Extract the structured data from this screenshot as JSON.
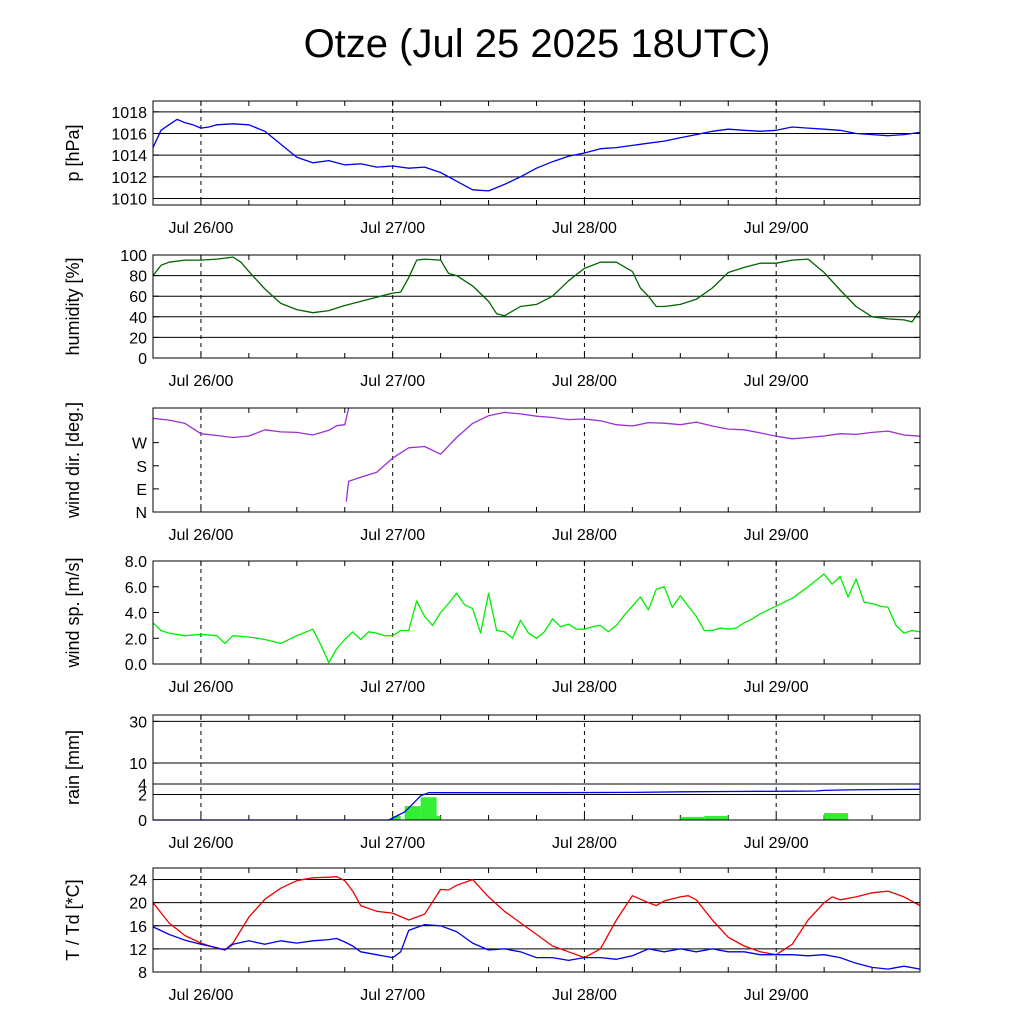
{
  "title": "Otze (Jul 25 2025 18UTC)",
  "colors": {
    "pressure": "#0000ee",
    "humidity": "#006400",
    "wind_dir": "#9b30d9",
    "wind_speed": "#00ee00",
    "rain_total": "#0000ee",
    "rain_bar": "#33ee33",
    "temperature": "#ee0000",
    "dewpoint": "#0000ee"
  },
  "chart_data": [
    {
      "type": "line",
      "id": "pressure",
      "ylabel": "p [hPa]",
      "ylim": [
        1009.4,
        1019.0
      ],
      "yticks": [
        1010,
        1012,
        1014,
        1016,
        1018
      ],
      "grid": true,
      "xlim": [
        0,
        96
      ],
      "xtick_positions": [
        6,
        30,
        54,
        78
      ],
      "xtick_labels": [
        "Jul 26/00",
        "Jul 27/00",
        "Jul 28/00",
        "Jul 29/00"
      ],
      "series": [
        {
          "color": "pressure",
          "x": [
            0,
            1,
            2,
            3,
            4,
            5,
            6,
            7,
            8,
            10,
            12,
            14,
            16,
            18,
            20,
            22,
            24,
            26,
            28,
            30,
            32,
            34,
            36,
            38,
            40,
            42,
            44,
            46,
            48,
            50,
            52,
            54,
            56,
            58,
            60,
            62,
            64,
            66,
            68,
            70,
            72,
            74,
            76,
            78,
            80,
            82,
            84,
            86,
            88,
            90,
            92,
            94,
            96
          ],
          "y": [
            1014.7,
            1016.3,
            1016.8,
            1017.3,
            1017.0,
            1016.8,
            1016.5,
            1016.6,
            1016.8,
            1016.9,
            1016.8,
            1016.2,
            1015.0,
            1013.8,
            1013.3,
            1013.5,
            1013.1,
            1013.2,
            1012.9,
            1013.0,
            1012.8,
            1012.9,
            1012.4,
            1011.6,
            1010.8,
            1010.7,
            1011.3,
            1012.0,
            1012.8,
            1013.4,
            1013.9,
            1014.2,
            1014.6,
            1014.7,
            1014.9,
            1015.1,
            1015.3,
            1015.6,
            1015.9,
            1016.2,
            1016.4,
            1016.3,
            1016.2,
            1016.3,
            1016.6,
            1016.5,
            1016.4,
            1016.3,
            1016.0,
            1015.9,
            1015.8,
            1015.9,
            1016.1
          ]
        }
      ]
    },
    {
      "type": "line",
      "id": "humidity",
      "ylabel": "humidity [%]",
      "ylim": [
        0,
        100
      ],
      "yticks": [
        0,
        20,
        40,
        60,
        80,
        100
      ],
      "grid": true,
      "xlim": [
        0,
        96
      ],
      "xtick_positions": [
        6,
        30,
        54,
        78
      ],
      "xtick_labels": [
        "Jul 26/00",
        "Jul 27/00",
        "Jul 28/00",
        "Jul 29/00"
      ],
      "series": [
        {
          "color": "humidity",
          "x": [
            0,
            1,
            2,
            4,
            6,
            8,
            10,
            11,
            12,
            14,
            16,
            18,
            20,
            22,
            24,
            26,
            28,
            30,
            31,
            32,
            33,
            34,
            36,
            37,
            38,
            40,
            42,
            43,
            44,
            46,
            48,
            50,
            52,
            54,
            56,
            58,
            60,
            61,
            62,
            63,
            64,
            66,
            68,
            70,
            72,
            74,
            76,
            78,
            80,
            82,
            84,
            86,
            88,
            90,
            92,
            94,
            95,
            96
          ],
          "y": [
            80,
            90,
            93,
            95,
            95,
            96,
            98,
            93,
            84,
            67,
            53,
            47,
            44,
            46,
            51,
            55,
            59,
            63,
            64,
            78,
            95,
            96,
            95,
            82,
            80,
            70,
            55,
            43,
            41,
            50,
            52,
            60,
            75,
            87,
            93,
            93,
            84,
            68,
            60,
            50,
            50,
            52,
            57,
            68,
            83,
            88,
            92,
            92,
            95,
            96,
            83,
            66,
            50,
            40,
            38,
            37,
            35,
            46
          ]
        }
      ]
    },
    {
      "type": "line",
      "id": "wind_dir",
      "ylabel": "wind dir. [deg.]",
      "ylim": [
        0,
        405
      ],
      "ytick_values": [
        0,
        90,
        180,
        270
      ],
      "ytick_labels": [
        "N",
        "E",
        "S",
        "W"
      ],
      "grid": false,
      "xlim": [
        0,
        96
      ],
      "xtick_positions": [
        6,
        30,
        54,
        78
      ],
      "xtick_labels": [
        "Jul 26/00",
        "Jul 27/00",
        "Jul 28/00",
        "Jul 29/00"
      ],
      "series": [
        {
          "color": "wind_dir",
          "x": [
            0,
            2,
            4,
            6,
            8,
            10,
            12,
            14,
            16,
            18,
            20,
            22,
            23,
            24,
            24.5
          ],
          "y": [
            365,
            358,
            345,
            305,
            298,
            290,
            296,
            320,
            312,
            310,
            300,
            318,
            336,
            340,
            405
          ]
        },
        {
          "color": "wind_dir",
          "x": [
            24.2,
            24.3,
            24.5,
            26,
            28,
            30,
            32,
            34,
            36,
            38,
            40,
            42,
            44,
            46,
            48,
            50,
            52,
            54,
            56,
            58,
            60,
            62,
            64,
            66,
            68,
            70,
            72,
            74,
            76,
            78,
            80,
            82,
            84,
            86,
            88,
            90,
            92,
            94,
            96
          ],
          "y": [
            40,
            70,
            120,
            135,
            155,
            210,
            250,
            255,
            225,
            290,
            345,
            375,
            388,
            382,
            373,
            368,
            360,
            362,
            355,
            340,
            335,
            348,
            346,
            340,
            350,
            335,
            323,
            320,
            308,
            295,
            285,
            290,
            296,
            305,
            302,
            310,
            315,
            300,
            295
          ]
        }
      ]
    },
    {
      "type": "line",
      "id": "wind_speed",
      "ylabel": "wind sp. [m/s]",
      "ylim": [
        0,
        8
      ],
      "yticks": [
        0,
        2,
        4,
        6,
        8
      ],
      "ytick_labels": [
        "0.0",
        "2.0",
        "4.0",
        "6.0",
        "8.0"
      ],
      "grid": false,
      "xlim": [
        0,
        96
      ],
      "xtick_positions": [
        6,
        30,
        54,
        78
      ],
      "xtick_labels": [
        "Jul 26/00",
        "Jul 27/00",
        "Jul 28/00",
        "Jul 29/00"
      ],
      "series": [
        {
          "color": "wind_speed",
          "x": [
            0,
            1,
            2,
            4,
            6,
            8,
            9,
            10,
            12,
            14,
            16,
            18,
            20,
            21,
            22,
            23,
            24,
            25,
            26,
            27,
            28,
            29,
            30,
            31,
            32,
            33,
            34,
            35,
            36,
            37,
            38,
            39,
            40,
            41,
            42,
            43,
            44,
            45,
            46,
            47,
            48,
            49,
            50,
            51,
            52,
            53,
            54,
            55,
            56,
            57,
            58,
            59,
            60,
            61,
            62,
            63,
            64,
            65,
            66,
            67,
            68,
            69,
            70,
            71,
            72,
            73,
            74,
            75,
            76,
            78,
            80,
            82,
            84,
            85,
            86,
            87,
            88,
            89,
            90,
            91,
            92,
            93,
            94,
            95,
            96
          ],
          "y": [
            3.2,
            2.6,
            2.4,
            2.2,
            2.3,
            2.2,
            1.6,
            2.2,
            2.1,
            1.9,
            1.6,
            2.2,
            2.7,
            1.5,
            0.1,
            1.2,
            1.9,
            2.5,
            1.9,
            2.5,
            2.4,
            2.2,
            2.2,
            2.6,
            2.6,
            4.9,
            3.7,
            3.0,
            4.0,
            4.7,
            5.5,
            4.6,
            4.3,
            2.4,
            5.5,
            2.6,
            2.5,
            2.0,
            3.4,
            2.4,
            2.0,
            2.5,
            3.5,
            2.9,
            3.1,
            2.7,
            2.7,
            2.9,
            3.0,
            2.5,
            3.0,
            3.8,
            4.5,
            5.2,
            4.2,
            5.8,
            6.0,
            4.4,
            5.3,
            4.5,
            3.7,
            2.6,
            2.6,
            2.8,
            2.7,
            2.8,
            3.2,
            3.5,
            3.9,
            4.5,
            5.1,
            6.0,
            7.0,
            6.2,
            6.8,
            5.2,
            6.6,
            4.8,
            4.7,
            4.5,
            4.4,
            3.0,
            2.4,
            2.6,
            2.5
          ]
        }
      ]
    },
    {
      "type": "bar+line",
      "id": "rain",
      "ylabel": "rain [mm]",
      "scale": "root",
      "ylim": [
        0,
        34
      ],
      "yticks": [
        0,
        2,
        4,
        10,
        30
      ],
      "grid": true,
      "xlim": [
        0,
        96
      ],
      "xtick_positions": [
        6,
        30,
        54,
        78
      ],
      "xtick_labels": [
        "Jul 26/00",
        "Jul 27/00",
        "Jul 28/00",
        "Jul 29/00"
      ],
      "bars": {
        "color": "rain_bar",
        "x": [
          30.5,
          32.5,
          34.5,
          35.5,
          67.5,
          70.5,
          85.5
        ],
        "width": [
          1,
          2,
          2,
          1,
          3,
          3,
          3
        ],
        "values": [
          0.05,
          0.6,
          1.6,
          0.05,
          0.03,
          0.05,
          0.15
        ]
      },
      "series": [
        {
          "color": "rain_total",
          "x": [
            0,
            29.5,
            30.5,
            31.5,
            32.5,
            33.5,
            34.5,
            40,
            50,
            60,
            66,
            72,
            80,
            83,
            84,
            87,
            90,
            96
          ],
          "y": [
            0,
            0,
            0.05,
            0.2,
            0.8,
            1.8,
            2.3,
            2.3,
            2.3,
            2.35,
            2.45,
            2.5,
            2.55,
            2.6,
            2.7,
            2.8,
            2.85,
            2.9
          ]
        }
      ]
    },
    {
      "type": "line",
      "id": "temp",
      "ylabel": "T / Td [*C]",
      "ylim": [
        8,
        26
      ],
      "yticks": [
        8,
        12,
        16,
        20,
        24
      ],
      "grid": true,
      "xlim": [
        0,
        96
      ],
      "xtick_positions": [
        6,
        30,
        54,
        78
      ],
      "xtick_labels": [
        "Jul 26/00",
        "Jul 27/00",
        "Jul 28/00",
        "Jul 29/00"
      ],
      "series": [
        {
          "name": "T",
          "color": "temperature",
          "x": [
            0,
            2,
            4,
            6,
            8,
            9,
            10,
            12,
            14,
            16,
            18,
            20,
            22,
            23,
            24,
            25,
            26,
            28,
            30,
            32,
            34,
            36,
            37,
            38,
            40,
            42,
            44,
            46,
            48,
            50,
            52,
            54,
            56,
            58,
            60,
            62,
            63,
            64,
            66,
            67,
            68,
            70,
            72,
            74,
            76,
            78,
            80,
            82,
            84,
            85,
            86,
            88,
            90,
            92,
            94,
            96
          ],
          "y": [
            20,
            16.5,
            14.3,
            13,
            12.1,
            11.8,
            13,
            17.5,
            20.6,
            22.5,
            23.8,
            24.3,
            24.4,
            24.5,
            23.8,
            22,
            19.5,
            18.5,
            18.2,
            17,
            18,
            22.3,
            22.2,
            23,
            24,
            21,
            18.5,
            16.5,
            14.5,
            12.5,
            11.5,
            10.5,
            12,
            17,
            21.2,
            20,
            19.5,
            20.3,
            21,
            21.2,
            20.5,
            17,
            14,
            12.5,
            11.5,
            11,
            12.8,
            17,
            20,
            21,
            20.5,
            21,
            21.7,
            22,
            21,
            19.5
          ]
        },
        {
          "name": "Td",
          "color": "dewpoint",
          "x": [
            0,
            2,
            4,
            6,
            8,
            9,
            10,
            12,
            14,
            16,
            18,
            20,
            22,
            23,
            24,
            25,
            26,
            28,
            30,
            31,
            32,
            34,
            36,
            38,
            40,
            42,
            44,
            46,
            48,
            50,
            52,
            54,
            56,
            58,
            60,
            62,
            64,
            66,
            68,
            70,
            72,
            74,
            76,
            78,
            80,
            82,
            84,
            86,
            88,
            90,
            92,
            94,
            96
          ],
          "y": [
            15.8,
            14.5,
            13.5,
            12.8,
            12.2,
            11.8,
            12.8,
            13.4,
            12.8,
            13.4,
            13.0,
            13.4,
            13.6,
            13.8,
            13.2,
            12.5,
            11.5,
            11.0,
            10.5,
            11.5,
            15.2,
            16.2,
            16.0,
            15.0,
            13.0,
            11.8,
            12.0,
            11.5,
            10.5,
            10.5,
            10.0,
            10.5,
            10.5,
            10.2,
            10.8,
            12.0,
            11.5,
            12.0,
            11.5,
            12.0,
            11.5,
            11.5,
            11.0,
            11.0,
            11.0,
            10.8,
            11.0,
            10.5,
            9.5,
            8.8,
            8.5,
            9.0,
            8.5
          ]
        }
      ]
    }
  ]
}
